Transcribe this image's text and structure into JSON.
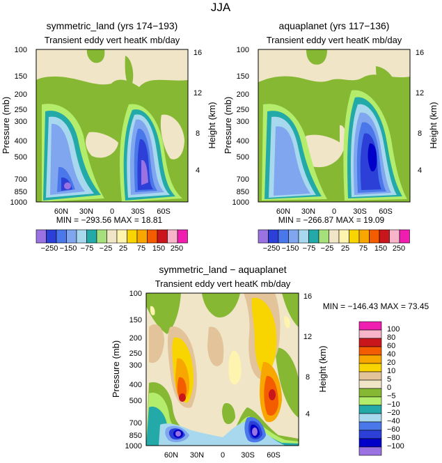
{
  "figure": {
    "title": "JJA"
  },
  "chart_data": [
    {
      "type": "contour",
      "id": "panel-symmetric-land",
      "title": "symmetric_land (yrs 174−193)",
      "subtitle": "Transient eddy vert heatK mb/day",
      "ylabel": "Pressure (mb)",
      "y2label": "Height (km)",
      "pressure_ticks": [
        "100",
        "150",
        "200",
        "250",
        "300",
        "400",
        "500",
        "700",
        "850",
        "1000"
      ],
      "height_ticks": [
        "16",
        "12",
        "8",
        "4"
      ],
      "x_ticks": [
        "60N",
        "30N",
        "0",
        "30S",
        "60S"
      ],
      "stats": "MIN = −293.56   MAX =  18.81",
      "min": -293.56,
      "max": 18.81,
      "colorbar_labels": [
        "−250",
        "−150",
        "−75",
        "−25",
        "25",
        "75",
        "150",
        "250"
      ]
    },
    {
      "type": "contour",
      "id": "panel-aquaplanet",
      "title": "aquaplanet (yrs 117−136)",
      "subtitle": "Transient eddy vert heatK mb/day",
      "ylabel": "Pressure (mb)",
      "y2label": "Height (km)",
      "pressure_ticks": [
        "100",
        "150",
        "200",
        "250",
        "300",
        "400",
        "500",
        "700",
        "850",
        "1000"
      ],
      "height_ticks": [
        "16",
        "12",
        "8",
        "4"
      ],
      "x_ticks": [
        "60N",
        "30N",
        "0",
        "30S",
        "60S"
      ],
      "stats": "MIN = −266.87   MAX =  19.09",
      "min": -266.87,
      "max": 19.09,
      "colorbar_labels": [
        "−250",
        "−150",
        "−75",
        "−25",
        "25",
        "75",
        "150",
        "250"
      ]
    },
    {
      "type": "contour",
      "id": "panel-difference",
      "title": "symmetric_land − aquaplanet",
      "subtitle": "Transient eddy vert heatK mb/day",
      "ylabel": "Pressure (mb)",
      "y2label": "Height (km)",
      "pressure_ticks": [
        "100",
        "150",
        "200",
        "250",
        "300",
        "400",
        "500",
        "700",
        "850",
        "1000"
      ],
      "height_ticks": [
        "16",
        "12",
        "8",
        "4"
      ],
      "x_ticks": [
        "60N",
        "30N",
        "0",
        "30S",
        "60S"
      ],
      "stats": "MIN = −146.43   MAX =  73.45",
      "min": -146.43,
      "max": 73.45,
      "colorbar_labels": [
        "100",
        "80",
        "60",
        "40",
        "20",
        "10",
        "5",
        "0",
        "−5",
        "−10",
        "−20",
        "−40",
        "−60",
        "−80",
        "−100"
      ]
    }
  ],
  "colors": {
    "main_scale": [
      "#9b72e2",
      "#2c3fd6",
      "#4a78ea",
      "#7fa6ef",
      "#a8d8ee",
      "#23aaa8",
      "#a6e07c",
      "#f0e6c7",
      "#fff3b0",
      "#f8d400",
      "#f8a600",
      "#f45c00",
      "#c8161c",
      "#f8b4c8",
      "#f01eb0"
    ],
    "diff_scale_top_to_bottom": [
      "#f01eb0",
      "#f8b4c8",
      "#c8161c",
      "#f45c00",
      "#f8a600",
      "#f8d400",
      "#e2c39a",
      "#f0e6c7",
      "#86b834",
      "#b4ec6c",
      "#23aaa8",
      "#a8d8ee",
      "#4a78ea",
      "#2c3fd6",
      "#0000c8",
      "#9b72e2"
    ]
  }
}
